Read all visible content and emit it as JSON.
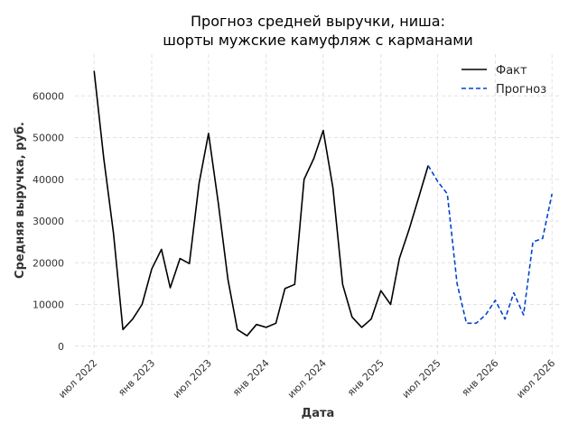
{
  "chart_data": {
    "type": "line",
    "title_lines": [
      "Прогноз средней выручки, ниша:",
      "шорты мужские камуфляж с карманами"
    ],
    "xlabel": "Дата",
    "ylabel": "Средняя выручка, руб.",
    "ylim": [
      -2000,
      70000
    ],
    "yticks": [
      0,
      10000,
      20000,
      30000,
      40000,
      50000,
      60000
    ],
    "ytick_labels": [
      "0",
      "10000",
      "20000",
      "30000",
      "40000",
      "50000",
      "60000"
    ],
    "xlim": [
      "2022-05-01",
      "2026-08-01"
    ],
    "xticks": [
      "2022-07-01",
      "2023-01-01",
      "2023-07-01",
      "2024-01-01",
      "2024-07-01",
      "2025-01-01",
      "2025-07-01",
      "2026-01-01",
      "2026-07-01"
    ],
    "xtick_labels": [
      "июл 2022",
      "янв 2023",
      "июл 2023",
      "янв 2024",
      "июл 2024",
      "янв 2025",
      "июл 2025",
      "янв 2026",
      "июл 2026"
    ],
    "grid": true,
    "legend_position": "top-right",
    "series": [
      {
        "name": "Факт",
        "color": "#000000",
        "style": "solid",
        "x": [
          "2022-07-01",
          "2022-08-01",
          "2022-09-01",
          "2022-10-01",
          "2022-11-01",
          "2022-12-01",
          "2023-01-01",
          "2023-02-01",
          "2023-03-01",
          "2023-04-01",
          "2023-05-01",
          "2023-06-01",
          "2023-07-01",
          "2023-08-01",
          "2023-09-01",
          "2023-10-01",
          "2023-11-01",
          "2023-12-01",
          "2024-01-01",
          "2024-02-01",
          "2024-03-01",
          "2024-04-01",
          "2024-05-01",
          "2024-06-01",
          "2024-07-01",
          "2024-08-01",
          "2024-09-01",
          "2024-10-01",
          "2024-11-01",
          "2024-12-01",
          "2025-01-01",
          "2025-02-01",
          "2025-03-01",
          "2025-04-01",
          "2025-05-01",
          "2025-06-01"
        ],
        "y": [
          66000,
          45000,
          27000,
          4000,
          6500,
          10000,
          18500,
          23200,
          14000,
          21000,
          19800,
          39000,
          51000,
          34500,
          16000,
          4000,
          2500,
          5200,
          4500,
          5500,
          13800,
          14800,
          40000,
          45000,
          51700,
          38000,
          14800,
          7000,
          4500,
          6500,
          13300,
          10000,
          21000,
          28000,
          35500,
          43300
        ]
      },
      {
        "name": "Прогноз",
        "color": "#0044cc",
        "style": "dashed",
        "x": [
          "2025-06-01",
          "2025-07-01",
          "2025-08-01",
          "2025-09-01",
          "2025-10-01",
          "2025-11-01",
          "2025-12-01",
          "2026-01-01",
          "2026-02-01",
          "2026-03-01",
          "2026-04-01",
          "2026-05-01",
          "2026-06-01",
          "2026-07-01"
        ],
        "y": [
          43300,
          39500,
          36500,
          15000,
          5500,
          5500,
          7500,
          11000,
          6500,
          12800,
          7500,
          25000,
          25800,
          36500
        ]
      }
    ]
  }
}
